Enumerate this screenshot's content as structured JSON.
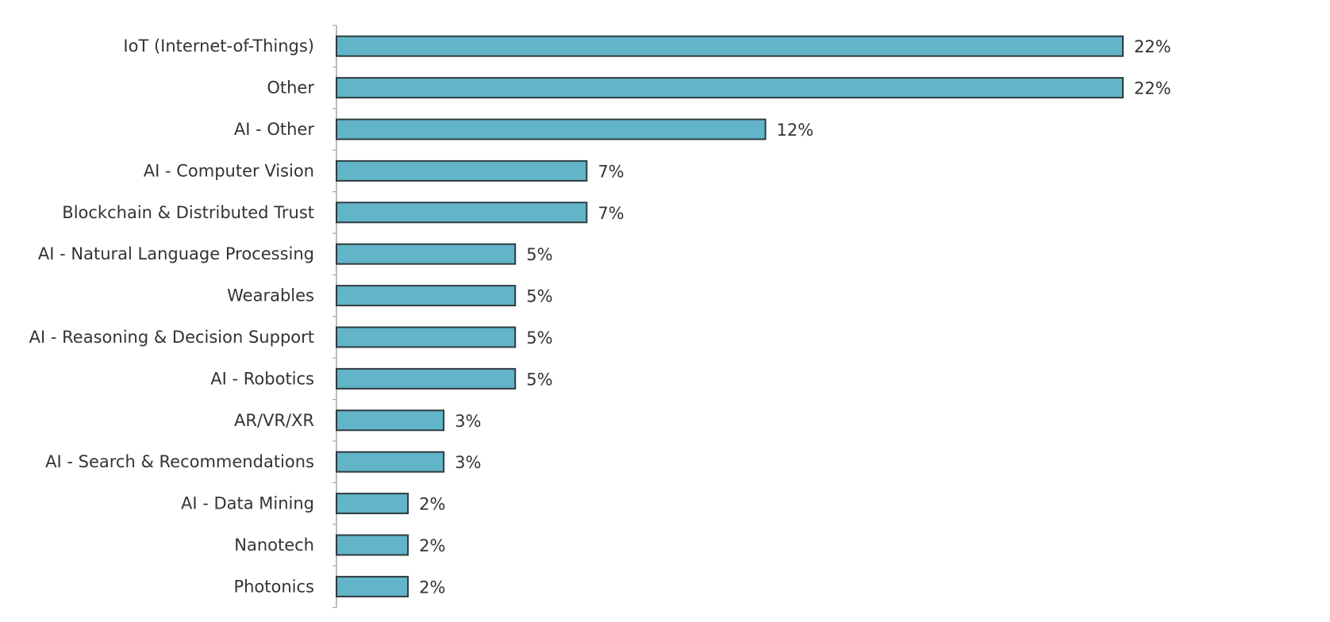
{
  "chart_data": {
    "type": "bar",
    "orientation": "horizontal",
    "categories": [
      "IoT (Internet-of-Things)",
      "Other",
      "AI - Other",
      "AI - Computer Vision",
      "Blockchain & Distributed Trust",
      "AI - Natural Language Processing",
      "Wearables",
      "AI - Reasoning & Decision Support",
      "AI - Robotics",
      "AR/VR/XR",
      "AI - Search & Recommendations",
      "AI - Data Mining",
      "Nanotech",
      "Photonics"
    ],
    "values": [
      22,
      22,
      12,
      7,
      7,
      5,
      5,
      5,
      5,
      3,
      3,
      2,
      2,
      2
    ],
    "data_labels": [
      "22%",
      "22%",
      "12%",
      "7%",
      "7%",
      "5%",
      "5%",
      "5%",
      "5%",
      "3%",
      "3%",
      "2%",
      "2%",
      "2%"
    ],
    "xlim": [
      0,
      22
    ],
    "grid": false,
    "legend": "none",
    "colors": {
      "bar_fill": "#62b4c8",
      "bar_stroke": "#2f3b40",
      "axis": "#a6a6a6",
      "text": "#333333"
    }
  }
}
